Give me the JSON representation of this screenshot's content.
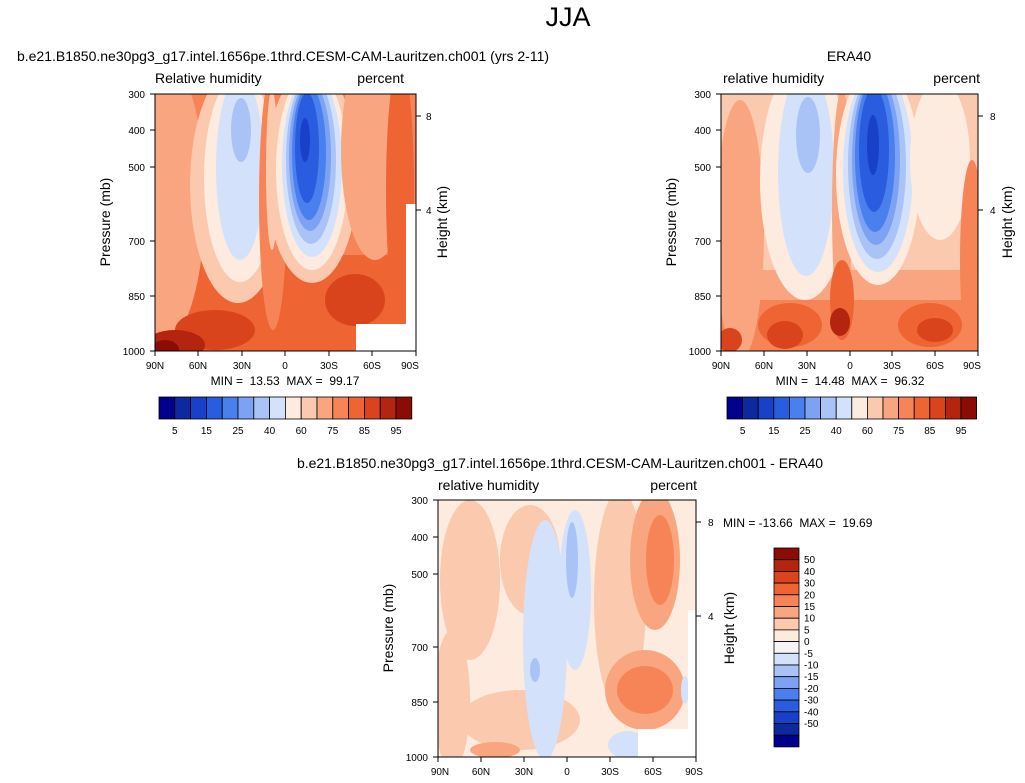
{
  "figure": {
    "title": "JJA"
  },
  "scales": {
    "abs_colors": [
      "#00008c",
      "#0c2a9e",
      "#1840c8",
      "#2a5ce0",
      "#4a7fee",
      "#7da2f4",
      "#aac3f6",
      "#d3e2fa",
      "#fdebe0",
      "#fbc9ad",
      "#f9a580",
      "#f68457",
      "#ee6432",
      "#d9441c",
      "#b3250f",
      "#8b0c05"
    ],
    "abs_labels": [
      "5",
      "15",
      "25",
      "40",
      "60",
      "75",
      "85",
      "95"
    ],
    "diff_colors": [
      "#8b0c05",
      "#b3250f",
      "#d9441c",
      "#ee6432",
      "#f68457",
      "#f9a580",
      "#fbc9ad",
      "#fdebe0",
      "#f5f5f5",
      "#d3e2fa",
      "#aac3f6",
      "#7da2f4",
      "#4a7fee",
      "#2a5ce0",
      "#1840c8",
      "#0c2a9e",
      "#00008c"
    ],
    "diff_labels": [
      "50",
      "40",
      "30",
      "20",
      "15",
      "10",
      "5",
      "0",
      "-5",
      "-10",
      "-15",
      "-20",
      "-30",
      "-40",
      "-50"
    ]
  },
  "chart_data": [
    {
      "type": "heatmap",
      "title": "b.e21.B1850.ne30pg3_g17.intel.1656pe.1thrd.CESM-CAM-Lauritzen.ch001 (yrs 2-11)",
      "left_string": "Relative humidity",
      "right_string": "percent",
      "ylabel": "Pressure (mb)",
      "y2label": "Height (km)",
      "x_ticks": [
        "90N",
        "60N",
        "30N",
        "0",
        "30S",
        "60S",
        "90S"
      ],
      "y_ticks": [
        "300",
        "400",
        "500",
        "700",
        "850",
        "1000"
      ],
      "y2_ticks": [
        "8",
        "4"
      ],
      "stats": "MIN =  13.53  MAX =  99.17",
      "min": 13.53,
      "max": 99.17,
      "xlim": [
        90,
        -90
      ],
      "ylim": [
        1000,
        300
      ],
      "colorbar": "abs",
      "min_lat": 25,
      "max_lat": 16,
      "min_p": 430
    },
    {
      "type": "heatmap",
      "title": "ERA40",
      "left_string": "relative humidity",
      "right_string": "percent",
      "ylabel": "Pressure (mb)",
      "y2label": "Height (km)",
      "x_ticks": [
        "90N",
        "60N",
        "30N",
        "0",
        "30S",
        "60S",
        "90S"
      ],
      "y_ticks": [
        "300",
        "400",
        "500",
        "700",
        "850",
        "1000"
      ],
      "y2_ticks": [
        "8",
        "4"
      ],
      "stats": "MIN =  14.48  MAX =  96.32",
      "min": 14.48,
      "max": 96.32,
      "xlim": [
        90,
        -90
      ],
      "ylim": [
        1000,
        300
      ],
      "colorbar": "abs",
      "min_lat": 20,
      "max_lat": 18,
      "min_p": 440
    },
    {
      "type": "heatmap",
      "title": "b.e21.B1850.ne30pg3_g17.intel.1656pe.1thrd.CESM-CAM-Lauritzen.ch001 - ERA40",
      "left_string": "relative humidity",
      "right_string": "percent",
      "ylabel": "Pressure (mb)",
      "y2label": "Height (km)",
      "x_ticks": [
        "90N",
        "60N",
        "30N",
        "0",
        "30S",
        "60S",
        "90S"
      ],
      "y_ticks": [
        "300",
        "400",
        "500",
        "700",
        "850",
        "1000"
      ],
      "y2_ticks": [
        "8",
        "4"
      ],
      "stats": "MIN = -13.66  MAX =  19.69",
      "min": -13.66,
      "max": 19.69,
      "xlim": [
        90,
        -90
      ],
      "ylim": [
        1000,
        300
      ],
      "colorbar": "diff",
      "min_lat": 0,
      "max_lat": -40,
      "min_p": 700
    }
  ]
}
